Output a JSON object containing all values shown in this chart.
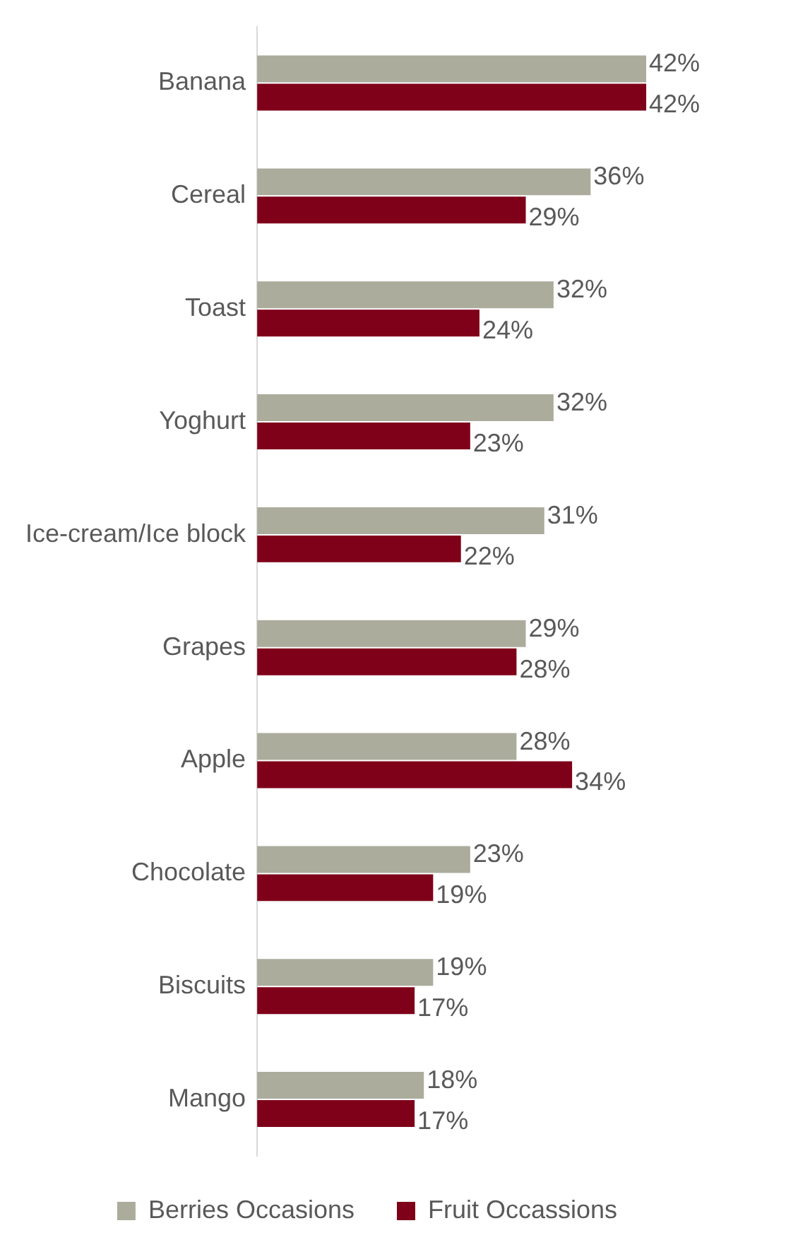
{
  "chart_data": {
    "type": "bar",
    "orientation": "horizontal",
    "categories": [
      "Banana",
      "Cereal",
      "Toast",
      "Yoghurt",
      "Ice-cream/Ice block",
      "Grapes",
      "Apple",
      "Chocolate",
      "Biscuits",
      "Mango"
    ],
    "series": [
      {
        "name": "Berries Occasions",
        "color": "#acac9d",
        "values": [
          42,
          36,
          32,
          32,
          31,
          29,
          28,
          23,
          19,
          18
        ],
        "value_labels": [
          "42%",
          "36%",
          "32%",
          "32%",
          "31%",
          "29%",
          "28%",
          "23%",
          "19%",
          "18%"
        ]
      },
      {
        "name": "Fruit Occassions",
        "color": "#7f0019",
        "values": [
          42,
          29,
          24,
          23,
          22,
          28,
          34,
          19,
          17,
          17
        ],
        "value_labels": [
          "42%",
          "29%",
          "24%",
          "23%",
          "22%",
          "28%",
          "34%",
          "19%",
          "17%",
          "17%"
        ]
      }
    ],
    "legend": "bottom",
    "grid": false,
    "tick_labels": "y"
  }
}
